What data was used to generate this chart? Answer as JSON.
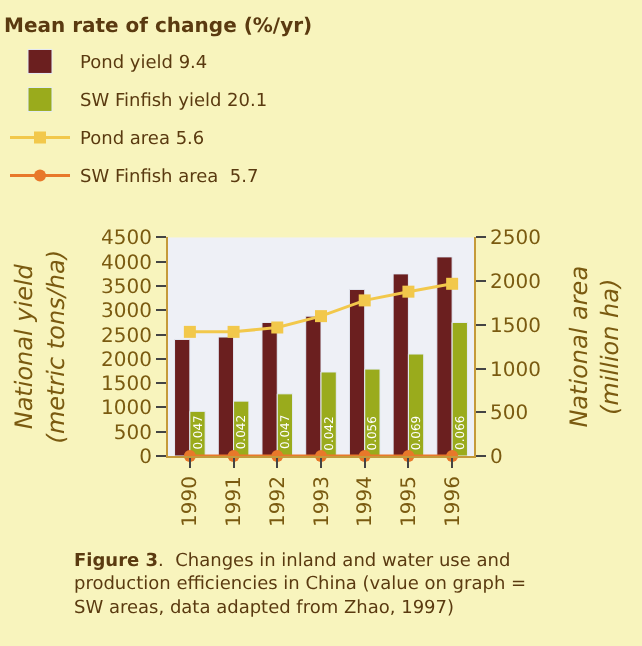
{
  "chart_data": {
    "type": "bar",
    "legend_title": "Mean rate of change (%/yr)",
    "ylabel": "National yield\n(metric tons/ha)",
    "y2label": "National area\n(million ha)",
    "categories": [
      "1990",
      "1991",
      "1992",
      "1993",
      "1994",
      "1995",
      "1996"
    ],
    "series": [
      {
        "name": "Pond yield 9.4",
        "color": "#6b1f1f",
        "values": [
          2400,
          2450,
          2750,
          2880,
          3430,
          3750,
          4100
        ]
      },
      {
        "name": "SW Finfish yield 20.1",
        "color": "#9aab1c",
        "values": [
          920,
          1130,
          1280,
          1730,
          1790,
          2100,
          2750
        ]
      },
      {
        "name": "Pond area 5.6",
        "type": "line",
        "axis": "y2",
        "color": "#f2c84b",
        "marker": "square",
        "values": [
          1420,
          1420,
          1470,
          1600,
          1780,
          1880,
          1970
        ]
      },
      {
        "name": "SW Finfish area  5.7",
        "type": "line",
        "axis": "y2",
        "color": "#e8782a",
        "marker": "circle",
        "values": [
          0.047,
          0.042,
          0.047,
          0.042,
          0.056,
          0.069,
          0.066
        ],
        "value_labels": [
          "0.047",
          "0.042",
          "0.047",
          "0.042",
          "0.056",
          "0.069",
          "0.066"
        ]
      }
    ],
    "ylim": [
      0,
      4500
    ],
    "yticks": [
      0,
      500,
      1000,
      1500,
      2000,
      2500,
      3000,
      3500,
      4000,
      4500
    ],
    "y2lim": [
      0,
      2500
    ],
    "y2ticks": [
      0,
      500,
      1000,
      1500,
      2000,
      2500
    ],
    "grid": false,
    "legend": "top",
    "annotations": [
      "**Figure 3**.  Changes in inland and water use and\nproduction efficiencies in China (value on graph =\nSW areas, data adapted from Zhao, 1997)"
    ]
  }
}
